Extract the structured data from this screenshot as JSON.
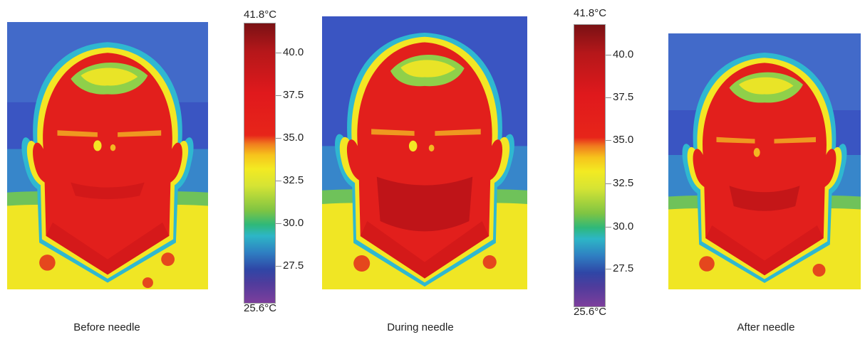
{
  "panels": [
    {
      "caption": "Before needle"
    },
    {
      "caption": "During needle"
    },
    {
      "caption": "After needle"
    }
  ],
  "scales": [
    {
      "max_label": "41.8°C",
      "min_label": "25.6°C",
      "ticks": [
        "40.0",
        "37.5",
        "35.0",
        "32.5",
        "30.0",
        "27.5"
      ]
    },
    {
      "max_label": "41.8°C",
      "min_label": "25.6°C",
      "ticks": [
        "40.0",
        "37.5",
        "35.0",
        "32.5",
        "30.0",
        "27.5"
      ]
    }
  ],
  "colors": {
    "background_cold": "#3a55c2",
    "hot_face": "#e21f1c",
    "warm_edge": "#f3e624",
    "cool_edge": "#45c1d9"
  }
}
